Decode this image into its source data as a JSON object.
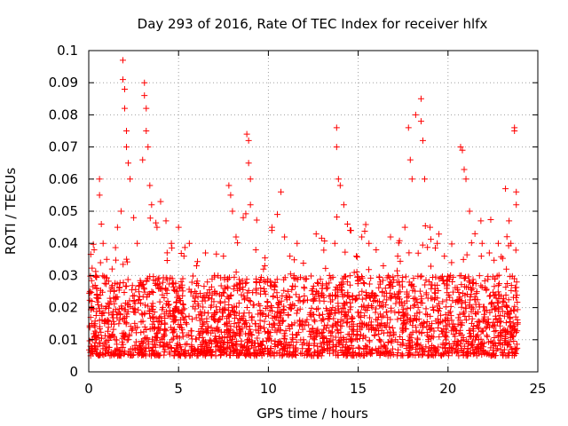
{
  "chart_data": {
    "type": "scatter",
    "title": "Day 293 of 2016, Rate Of TEC Index for receiver hlfx",
    "xlabel": "GPS time / hours",
    "ylabel": "ROTI / TECUs",
    "xlim": [
      0,
      25
    ],
    "ylim": [
      0,
      0.1
    ],
    "xticks": [
      "0",
      "5",
      "10",
      "15",
      "20",
      "25"
    ],
    "yticks": [
      "0",
      "0.01",
      "0.02",
      "0.03",
      "0.04",
      "0.05",
      "0.06",
      "0.07",
      "0.08",
      "0.09",
      "0.1"
    ],
    "grid": true,
    "marker": "+",
    "series": [
      {
        "name": "ROTI",
        "color": "#ff0000",
        "points": [
          [
            0.3,
            0.038
          ],
          [
            0.4,
            0.03
          ],
          [
            0.6,
            0.055
          ],
          [
            0.6,
            0.06
          ],
          [
            0.7,
            0.046
          ],
          [
            0.8,
            0.04
          ],
          [
            1.0,
            0.035
          ],
          [
            1.3,
            0.032
          ],
          [
            1.6,
            0.045
          ],
          [
            1.8,
            0.05
          ],
          [
            1.9,
            0.097
          ],
          [
            1.9,
            0.091
          ],
          [
            2.0,
            0.088
          ],
          [
            2.0,
            0.082
          ],
          [
            2.1,
            0.075
          ],
          [
            2.1,
            0.07
          ],
          [
            2.2,
            0.065
          ],
          [
            2.3,
            0.06
          ],
          [
            2.5,
            0.048
          ],
          [
            2.7,
            0.04
          ],
          [
            3.0,
            0.066
          ],
          [
            3.1,
            0.09
          ],
          [
            3.1,
            0.086
          ],
          [
            3.2,
            0.082
          ],
          [
            3.2,
            0.075
          ],
          [
            3.3,
            0.07
          ],
          [
            3.4,
            0.058
          ],
          [
            3.5,
            0.052
          ],
          [
            3.8,
            0.045
          ],
          [
            4.0,
            0.053
          ],
          [
            4.3,
            0.047
          ],
          [
            4.6,
            0.04
          ],
          [
            5.0,
            0.045
          ],
          [
            5.3,
            0.036
          ],
          [
            5.6,
            0.04
          ],
          [
            6.0,
            0.033
          ],
          [
            6.5,
            0.037
          ],
          [
            7.0,
            0.03
          ],
          [
            7.5,
            0.036
          ],
          [
            7.8,
            0.058
          ],
          [
            7.9,
            0.055
          ],
          [
            8.0,
            0.05
          ],
          [
            8.2,
            0.042
          ],
          [
            8.6,
            0.048
          ],
          [
            8.8,
            0.074
          ],
          [
            8.9,
            0.072
          ],
          [
            8.9,
            0.065
          ],
          [
            9.0,
            0.06
          ],
          [
            9.0,
            0.052
          ],
          [
            9.3,
            0.038
          ],
          [
            9.8,
            0.033
          ],
          [
            10.2,
            0.045
          ],
          [
            10.5,
            0.049
          ],
          [
            10.7,
            0.056
          ],
          [
            10.9,
            0.042
          ],
          [
            11.2,
            0.036
          ],
          [
            11.6,
            0.04
          ],
          [
            12.0,
            0.029
          ],
          [
            12.5,
            0.022
          ],
          [
            13.0,
            0.026
          ],
          [
            13.4,
            0.03
          ],
          [
            13.7,
            0.04
          ],
          [
            13.8,
            0.076
          ],
          [
            13.8,
            0.07
          ],
          [
            13.9,
            0.06
          ],
          [
            14.0,
            0.058
          ],
          [
            14.2,
            0.052
          ],
          [
            14.4,
            0.046
          ],
          [
            14.6,
            0.044
          ],
          [
            14.9,
            0.036
          ],
          [
            15.2,
            0.042
          ],
          [
            15.6,
            0.04
          ],
          [
            16.0,
            0.038
          ],
          [
            16.4,
            0.033
          ],
          [
            16.8,
            0.042
          ],
          [
            17.2,
            0.036
          ],
          [
            17.6,
            0.045
          ],
          [
            17.8,
            0.076
          ],
          [
            17.9,
            0.066
          ],
          [
            18.0,
            0.06
          ],
          [
            18.2,
            0.08
          ],
          [
            18.5,
            0.085
          ],
          [
            18.5,
            0.078
          ],
          [
            18.6,
            0.072
          ],
          [
            18.7,
            0.06
          ],
          [
            19.0,
            0.045
          ],
          [
            19.4,
            0.04
          ],
          [
            19.8,
            0.036
          ],
          [
            20.2,
            0.034
          ],
          [
            20.7,
            0.07
          ],
          [
            20.8,
            0.069
          ],
          [
            20.9,
            0.063
          ],
          [
            21.0,
            0.06
          ],
          [
            21.2,
            0.05
          ],
          [
            21.5,
            0.043
          ],
          [
            21.9,
            0.04
          ],
          [
            22.3,
            0.037
          ],
          [
            22.8,
            0.04
          ],
          [
            23.2,
            0.057
          ],
          [
            23.4,
            0.047
          ],
          [
            23.5,
            0.04
          ],
          [
            23.7,
            0.076
          ],
          [
            23.7,
            0.075
          ],
          [
            23.8,
            0.056
          ],
          [
            23.8,
            0.052
          ]
        ]
      }
    ]
  }
}
